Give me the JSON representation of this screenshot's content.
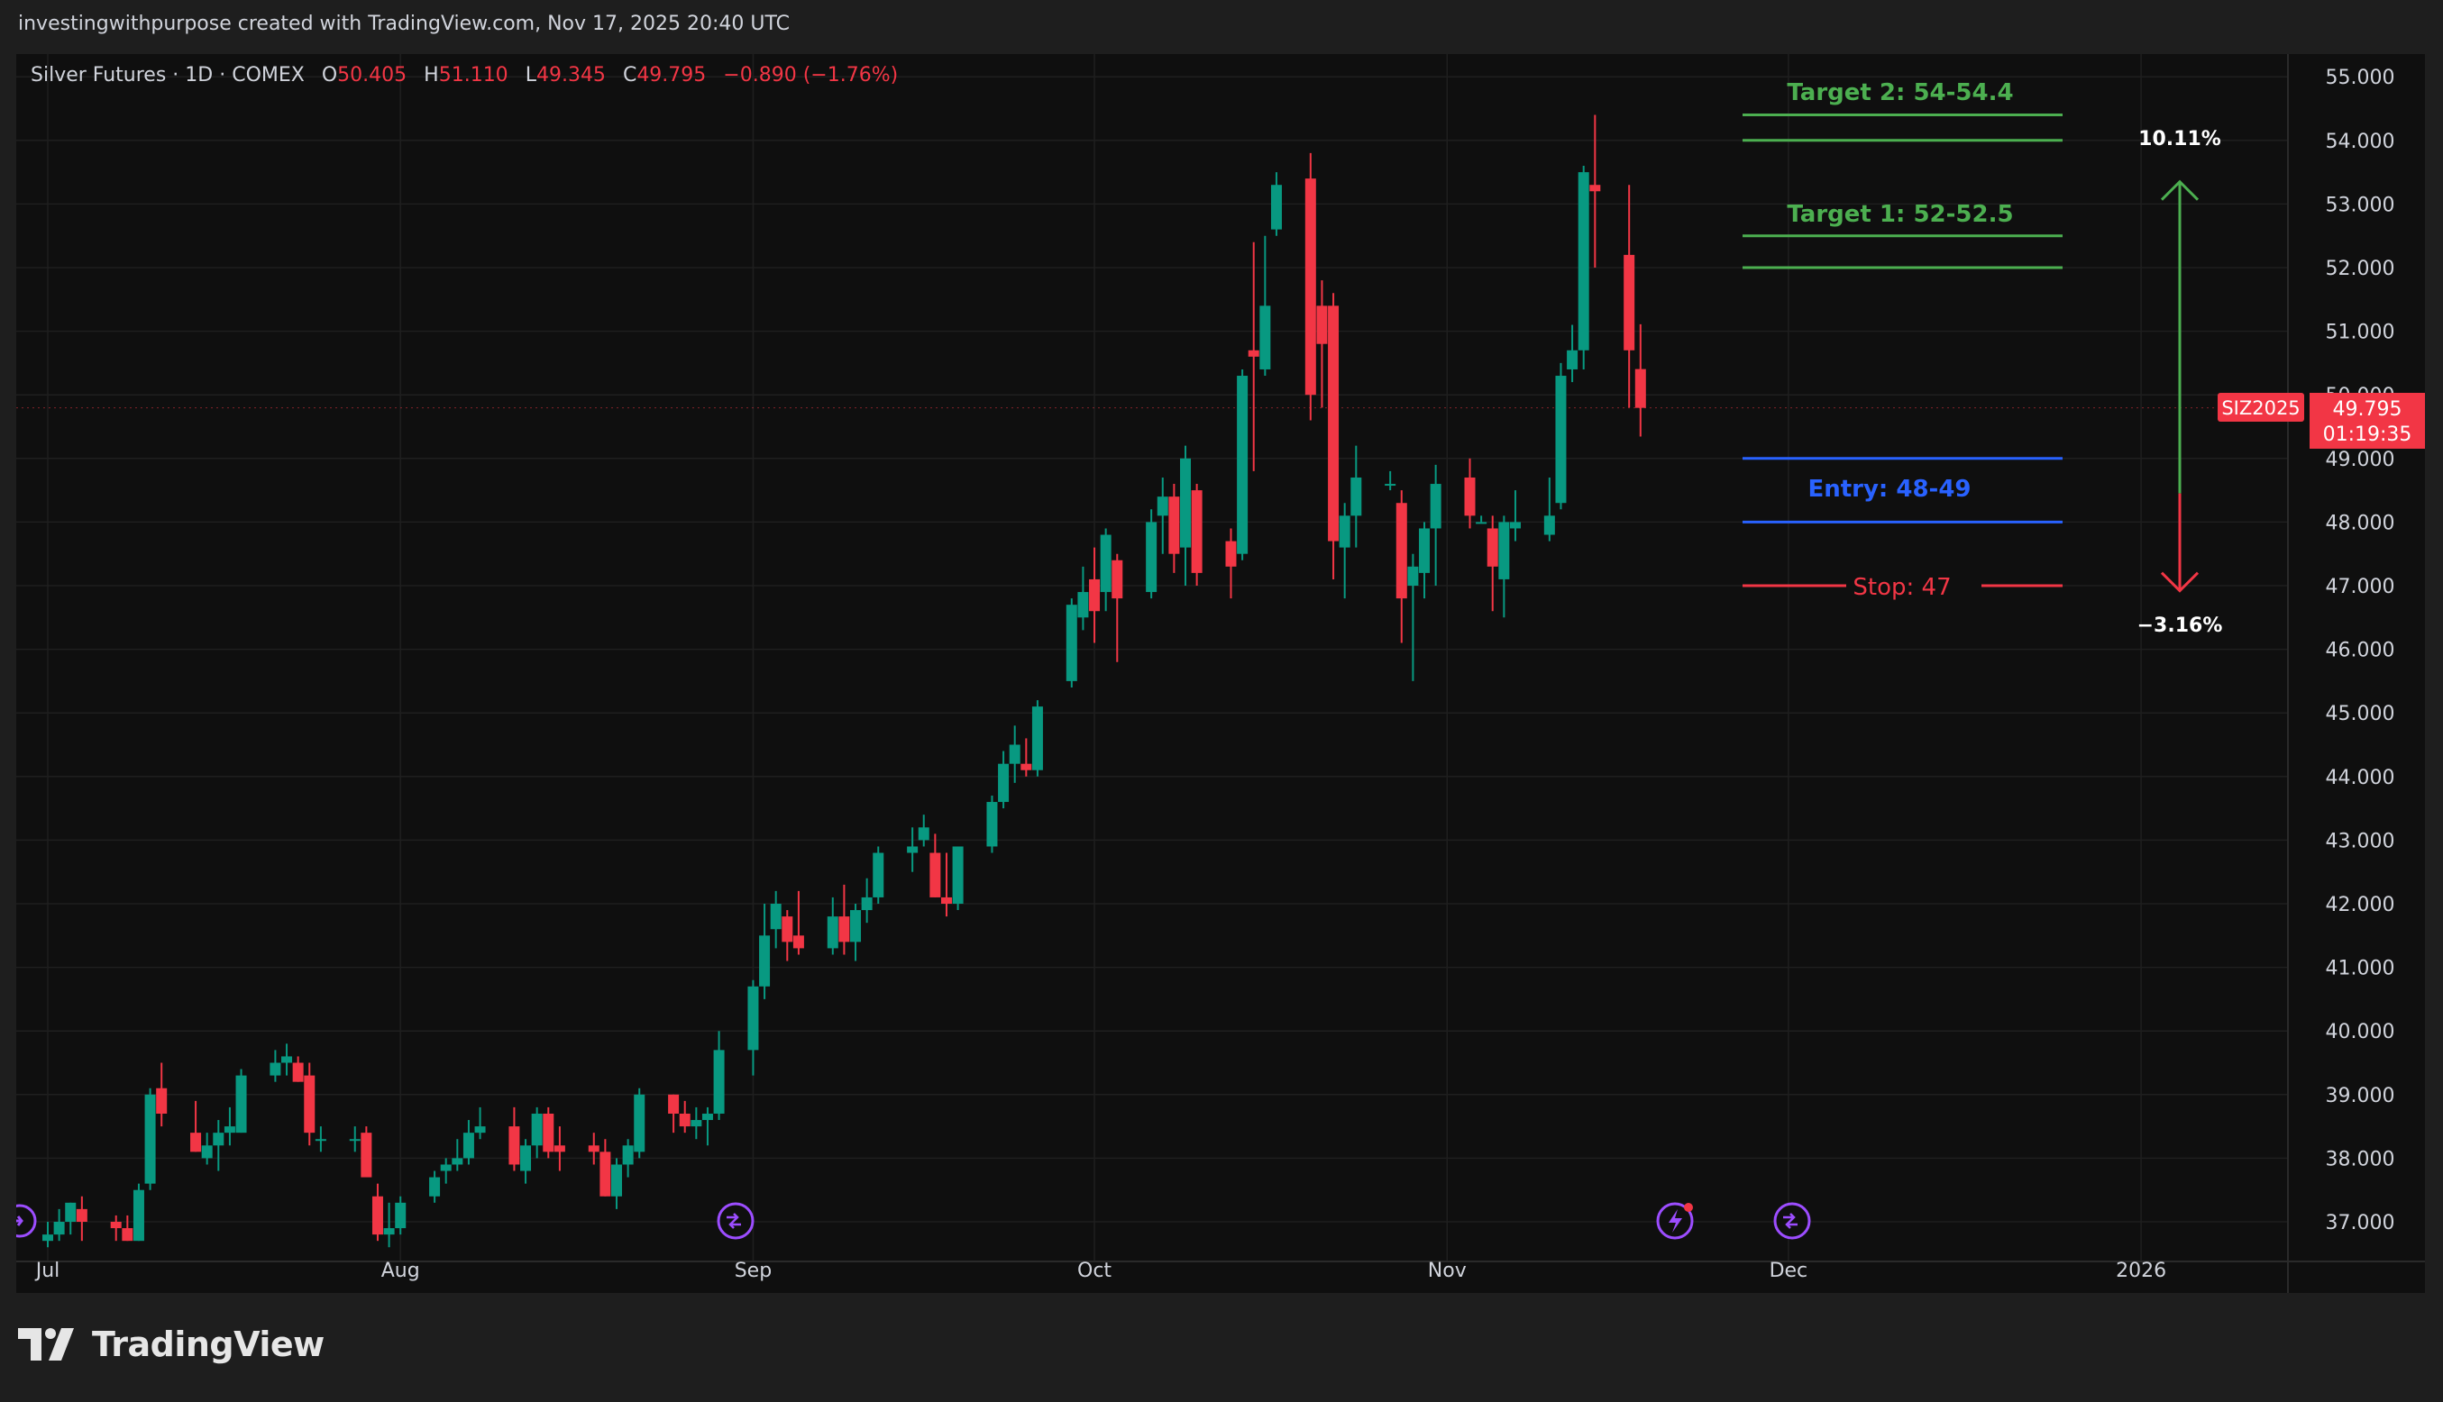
{
  "header": {
    "credit": "investingwithpurpose created with TradingView.com, Nov 17, 2025 20:40 UTC"
  },
  "legend": {
    "symbol": "Silver Futures · 1D · COMEX",
    "o_label": "O",
    "o_value": "50.405",
    "h_label": "H",
    "h_value": "51.110",
    "l_label": "L",
    "l_value": "49.345",
    "c_label": "C",
    "c_value": "49.795",
    "change": "−0.890 (−1.76%)"
  },
  "price_badge": {
    "symbol": "SIZ2025",
    "price": "49.795",
    "countdown": "01:19:35"
  },
  "annotations": {
    "target2": "Target 2: 54-54.4",
    "target1": "Target 1: 52-52.5",
    "entry": "Entry: 48-49",
    "stop": "Stop: 47",
    "upside": "10.11%",
    "downside": "−3.16%"
  },
  "footer": {
    "brand": "TradingView"
  },
  "colors": {
    "up": "#089981",
    "down": "#f23645",
    "target": "#4caf50",
    "entry": "#2962ff",
    "stop": "#f23645",
    "background": "#0f0f0f",
    "grid": "#1f1f1f",
    "text": "#d1d4dc"
  },
  "chart_data": {
    "type": "candlestick",
    "title": "Silver Futures · 1D · COMEX",
    "ylim": [
      36.6,
      55.3
    ],
    "y_ticks": [
      "37.000",
      "38.000",
      "39.000",
      "40.000",
      "41.000",
      "42.000",
      "43.000",
      "44.000",
      "45.000",
      "46.000",
      "47.000",
      "48.000",
      "49.000",
      "50.000",
      "51.000",
      "52.000",
      "53.000",
      "54.000",
      "55.000"
    ],
    "x_ticks": [
      {
        "label": "Jul",
        "date": "2025-07-01"
      },
      {
        "label": "Aug",
        "date": "2025-08-01"
      },
      {
        "label": "Sep",
        "date": "2025-09-01"
      },
      {
        "label": "Oct",
        "date": "2025-10-01"
      },
      {
        "label": "Nov",
        "date": "2025-11-01"
      },
      {
        "label": "Dec",
        "date": "2025-12-01"
      },
      {
        "label": "2026",
        "date": "2026-01-01"
      }
    ],
    "candles": [
      {
        "date": "2025-07-01",
        "o": 36.7,
        "h": 37.0,
        "l": 36.6,
        "c": 36.8
      },
      {
        "date": "2025-07-02",
        "o": 36.8,
        "h": 37.2,
        "l": 36.7,
        "c": 37.0
      },
      {
        "date": "2025-07-03",
        "o": 37.0,
        "h": 37.3,
        "l": 36.8,
        "c": 37.3
      },
      {
        "date": "2025-07-04",
        "o": 37.2,
        "h": 37.4,
        "l": 36.7,
        "c": 37.0
      },
      {
        "date": "2025-07-07",
        "o": 37.0,
        "h": 37.1,
        "l": 36.7,
        "c": 36.9
      },
      {
        "date": "2025-07-08",
        "o": 36.9,
        "h": 37.1,
        "l": 36.7,
        "c": 36.7
      },
      {
        "date": "2025-07-09",
        "o": 36.7,
        "h": 37.6,
        "l": 36.7,
        "c": 37.5
      },
      {
        "date": "2025-07-10",
        "o": 37.6,
        "h": 39.1,
        "l": 37.5,
        "c": 39.0
      },
      {
        "date": "2025-07-11",
        "o": 39.1,
        "h": 39.5,
        "l": 38.5,
        "c": 38.7
      },
      {
        "date": "2025-07-14",
        "o": 38.4,
        "h": 38.9,
        "l": 38.1,
        "c": 38.1
      },
      {
        "date": "2025-07-15",
        "o": 38.0,
        "h": 38.4,
        "l": 37.9,
        "c": 38.2
      },
      {
        "date": "2025-07-16",
        "o": 38.2,
        "h": 38.6,
        "l": 37.8,
        "c": 38.4
      },
      {
        "date": "2025-07-17",
        "o": 38.4,
        "h": 38.8,
        "l": 38.2,
        "c": 38.5
      },
      {
        "date": "2025-07-18",
        "o": 38.4,
        "h": 39.4,
        "l": 38.4,
        "c": 39.3
      },
      {
        "date": "2025-07-21",
        "o": 39.3,
        "h": 39.7,
        "l": 39.2,
        "c": 39.5
      },
      {
        "date": "2025-07-22",
        "o": 39.5,
        "h": 39.8,
        "l": 39.3,
        "c": 39.6
      },
      {
        "date": "2025-07-23",
        "o": 39.5,
        "h": 39.6,
        "l": 39.2,
        "c": 39.2
      },
      {
        "date": "2025-07-24",
        "o": 39.3,
        "h": 39.5,
        "l": 38.2,
        "c": 38.4
      },
      {
        "date": "2025-07-25",
        "o": 38.3,
        "h": 38.5,
        "l": 38.1,
        "c": 38.3
      },
      {
        "date": "2025-07-28",
        "o": 38.3,
        "h": 38.5,
        "l": 38.1,
        "c": 38.3
      },
      {
        "date": "2025-07-29",
        "o": 38.4,
        "h": 38.5,
        "l": 37.8,
        "c": 37.7
      },
      {
        "date": "2025-07-30",
        "o": 37.4,
        "h": 37.6,
        "l": 36.7,
        "c": 36.8
      },
      {
        "date": "2025-07-31",
        "o": 36.8,
        "h": 37.3,
        "l": 36.6,
        "c": 36.9
      },
      {
        "date": "2025-08-01",
        "o": 36.9,
        "h": 37.4,
        "l": 36.8,
        "c": 37.3
      },
      {
        "date": "2025-08-04",
        "o": 37.4,
        "h": 37.8,
        "l": 37.3,
        "c": 37.7
      },
      {
        "date": "2025-08-05",
        "o": 37.8,
        "h": 38.0,
        "l": 37.6,
        "c": 37.9
      },
      {
        "date": "2025-08-06",
        "o": 37.9,
        "h": 38.3,
        "l": 37.8,
        "c": 38.0
      },
      {
        "date": "2025-08-07",
        "o": 38.0,
        "h": 38.6,
        "l": 37.9,
        "c": 38.4
      },
      {
        "date": "2025-08-08",
        "o": 38.4,
        "h": 38.8,
        "l": 38.3,
        "c": 38.5
      },
      {
        "date": "2025-08-11",
        "o": 38.5,
        "h": 38.8,
        "l": 37.8,
        "c": 37.9
      },
      {
        "date": "2025-08-12",
        "o": 37.8,
        "h": 38.3,
        "l": 37.6,
        "c": 38.2
      },
      {
        "date": "2025-08-13",
        "o": 38.2,
        "h": 38.8,
        "l": 38.0,
        "c": 38.7
      },
      {
        "date": "2025-08-14",
        "o": 38.7,
        "h": 38.8,
        "l": 38.0,
        "c": 38.1
      },
      {
        "date": "2025-08-15",
        "o": 38.2,
        "h": 38.5,
        "l": 37.8,
        "c": 38.1
      },
      {
        "date": "2025-08-18",
        "o": 38.2,
        "h": 38.4,
        "l": 37.9,
        "c": 38.1
      },
      {
        "date": "2025-08-19",
        "o": 38.1,
        "h": 38.3,
        "l": 37.4,
        "c": 37.4
      },
      {
        "date": "2025-08-20",
        "o": 37.4,
        "h": 38.0,
        "l": 37.2,
        "c": 37.9
      },
      {
        "date": "2025-08-21",
        "o": 37.9,
        "h": 38.3,
        "l": 37.7,
        "c": 38.2
      },
      {
        "date": "2025-08-22",
        "o": 38.1,
        "h": 39.1,
        "l": 38.0,
        "c": 39.0
      },
      {
        "date": "2025-08-25",
        "o": 39.0,
        "h": 39.0,
        "l": 38.4,
        "c": 38.7
      },
      {
        "date": "2025-08-26",
        "o": 38.7,
        "h": 38.9,
        "l": 38.4,
        "c": 38.5
      },
      {
        "date": "2025-08-27",
        "o": 38.5,
        "h": 38.8,
        "l": 38.3,
        "c": 38.6
      },
      {
        "date": "2025-08-28",
        "o": 38.6,
        "h": 38.8,
        "l": 38.2,
        "c": 38.7
      },
      {
        "date": "2025-08-29",
        "o": 38.7,
        "h": 40.0,
        "l": 38.6,
        "c": 39.7
      },
      {
        "date": "2025-09-01",
        "o": 39.7,
        "h": 40.8,
        "l": 39.3,
        "c": 40.7
      },
      {
        "date": "2025-09-02",
        "o": 40.7,
        "h": 42.0,
        "l": 40.5,
        "c": 41.5
      },
      {
        "date": "2025-09-03",
        "o": 41.6,
        "h": 42.2,
        "l": 41.3,
        "c": 42.0
      },
      {
        "date": "2025-09-04",
        "o": 41.8,
        "h": 41.9,
        "l": 41.1,
        "c": 41.4
      },
      {
        "date": "2025-09-05",
        "o": 41.5,
        "h": 42.2,
        "l": 41.2,
        "c": 41.3
      },
      {
        "date": "2025-09-08",
        "o": 41.3,
        "h": 42.1,
        "l": 41.2,
        "c": 41.8
      },
      {
        "date": "2025-09-09",
        "o": 41.8,
        "h": 42.3,
        "l": 41.2,
        "c": 41.4
      },
      {
        "date": "2025-09-10",
        "o": 41.4,
        "h": 42.0,
        "l": 41.1,
        "c": 41.9
      },
      {
        "date": "2025-09-11",
        "o": 41.9,
        "h": 42.4,
        "l": 41.7,
        "c": 42.1
      },
      {
        "date": "2025-09-12",
        "o": 42.1,
        "h": 42.9,
        "l": 42.0,
        "c": 42.8
      },
      {
        "date": "2025-09-15",
        "o": 42.8,
        "h": 43.2,
        "l": 42.5,
        "c": 42.9
      },
      {
        "date": "2025-09-16",
        "o": 43.0,
        "h": 43.4,
        "l": 42.9,
        "c": 43.2
      },
      {
        "date": "2025-09-17",
        "o": 42.8,
        "h": 43.1,
        "l": 42.1,
        "c": 42.1
      },
      {
        "date": "2025-09-18",
        "o": 42.1,
        "h": 42.8,
        "l": 41.8,
        "c": 42.0
      },
      {
        "date": "2025-09-19",
        "o": 42.0,
        "h": 42.9,
        "l": 41.9,
        "c": 42.9
      },
      {
        "date": "2025-09-22",
        "o": 42.9,
        "h": 43.7,
        "l": 42.8,
        "c": 43.6
      },
      {
        "date": "2025-09-23",
        "o": 43.6,
        "h": 44.4,
        "l": 43.5,
        "c": 44.2
      },
      {
        "date": "2025-09-24",
        "o": 44.2,
        "h": 44.8,
        "l": 43.9,
        "c": 44.5
      },
      {
        "date": "2025-09-25",
        "o": 44.2,
        "h": 44.6,
        "l": 44.0,
        "c": 44.1
      },
      {
        "date": "2025-09-26",
        "o": 44.1,
        "h": 45.2,
        "l": 44.0,
        "c": 45.1
      },
      {
        "date": "2025-09-29",
        "o": 45.5,
        "h": 46.8,
        "l": 45.4,
        "c": 46.7
      },
      {
        "date": "2025-09-30",
        "o": 46.5,
        "h": 47.3,
        "l": 46.3,
        "c": 46.9
      },
      {
        "date": "2025-10-01",
        "o": 47.1,
        "h": 47.6,
        "l": 46.1,
        "c": 46.6
      },
      {
        "date": "2025-10-02",
        "o": 46.9,
        "h": 47.9,
        "l": 46.6,
        "c": 47.8
      },
      {
        "date": "2025-10-03",
        "o": 47.4,
        "h": 47.5,
        "l": 45.8,
        "c": 46.8
      },
      {
        "date": "2025-10-06",
        "o": 46.9,
        "h": 48.2,
        "l": 46.8,
        "c": 48.0
      },
      {
        "date": "2025-10-07",
        "o": 48.1,
        "h": 48.7,
        "l": 47.5,
        "c": 48.4
      },
      {
        "date": "2025-10-08",
        "o": 48.4,
        "h": 48.6,
        "l": 47.2,
        "c": 47.5
      },
      {
        "date": "2025-10-09",
        "o": 47.6,
        "h": 49.2,
        "l": 47.0,
        "c": 49.0
      },
      {
        "date": "2025-10-10",
        "o": 48.5,
        "h": 48.6,
        "l": 47.0,
        "c": 47.2
      },
      {
        "date": "2025-10-13",
        "o": 47.7,
        "h": 47.9,
        "l": 46.8,
        "c": 47.3
      },
      {
        "date": "2025-10-14",
        "o": 47.5,
        "h": 50.4,
        "l": 47.4,
        "c": 50.3
      },
      {
        "date": "2025-10-15",
        "o": 50.7,
        "h": 52.4,
        "l": 48.8,
        "c": 50.6
      },
      {
        "date": "2025-10-16",
        "o": 50.4,
        "h": 52.5,
        "l": 50.3,
        "c": 51.4
      },
      {
        "date": "2025-10-17",
        "o": 52.6,
        "h": 53.5,
        "l": 52.5,
        "c": 53.3
      },
      {
        "date": "2025-10-20",
        "o": 53.4,
        "h": 53.8,
        "l": 49.6,
        "c": 50.0
      },
      {
        "date": "2025-10-21",
        "o": 51.4,
        "h": 51.8,
        "l": 49.8,
        "c": 50.8
      },
      {
        "date": "2025-10-22",
        "o": 51.4,
        "h": 51.6,
        "l": 47.1,
        "c": 47.7
      },
      {
        "date": "2025-10-23",
        "o": 47.6,
        "h": 48.3,
        "l": 46.8,
        "c": 48.1
      },
      {
        "date": "2025-10-24",
        "o": 48.1,
        "h": 49.2,
        "l": 47.6,
        "c": 48.7
      },
      {
        "date": "2025-10-27",
        "o": 48.6,
        "h": 48.8,
        "l": 48.5,
        "c": 48.6
      },
      {
        "date": "2025-10-28",
        "o": 48.3,
        "h": 48.5,
        "l": 46.1,
        "c": 46.8
      },
      {
        "date": "2025-10-29",
        "o": 47.0,
        "h": 47.5,
        "l": 45.5,
        "c": 47.3
      },
      {
        "date": "2025-10-30",
        "o": 47.2,
        "h": 48.0,
        "l": 46.8,
        "c": 47.9
      },
      {
        "date": "2025-10-31",
        "o": 47.9,
        "h": 48.9,
        "l": 47.0,
        "c": 48.6
      },
      {
        "date": "2025-11-03",
        "o": 48.7,
        "h": 49.0,
        "l": 47.9,
        "c": 48.1
      },
      {
        "date": "2025-11-04",
        "o": 48.0,
        "h": 48.1,
        "l": 48.0,
        "c": 48.0
      },
      {
        "date": "2025-11-05",
        "o": 47.9,
        "h": 48.1,
        "l": 46.6,
        "c": 47.3
      },
      {
        "date": "2025-11-06",
        "o": 47.1,
        "h": 48.1,
        "l": 46.5,
        "c": 48.0
      },
      {
        "date": "2025-11-07",
        "o": 47.9,
        "h": 48.5,
        "l": 47.7,
        "c": 48.0
      },
      {
        "date": "2025-11-10",
        "o": 47.8,
        "h": 48.7,
        "l": 47.7,
        "c": 48.1
      },
      {
        "date": "2025-11-11",
        "o": 48.3,
        "h": 50.5,
        "l": 48.2,
        "c": 50.3
      },
      {
        "date": "2025-11-12",
        "o": 50.4,
        "h": 51.1,
        "l": 50.2,
        "c": 50.7
      },
      {
        "date": "2025-11-13",
        "o": 50.7,
        "h": 53.6,
        "l": 50.4,
        "c": 53.5
      },
      {
        "date": "2025-11-14",
        "o": 53.3,
        "h": 54.4,
        "l": 52.0,
        "c": 53.2
      },
      {
        "date": "2025-11-17",
        "o": 52.2,
        "h": 53.3,
        "l": 49.8,
        "c": 50.7
      },
      {
        "date": "2025-11-18",
        "o": 50.405,
        "h": 51.11,
        "l": 49.345,
        "c": 49.795
      }
    ],
    "levels": [
      {
        "name": "Target 2: 54-54.4",
        "low": 54.0,
        "high": 54.4
      },
      {
        "name": "Target 1: 52-52.5",
        "low": 52.0,
        "high": 52.5
      },
      {
        "name": "Entry: 48-49",
        "low": 48.0,
        "high": 49.0
      },
      {
        "name": "Stop: 47",
        "value": 47.0
      }
    ],
    "projection": {
      "from": 48.45,
      "up_to": 53.35,
      "down_to": 46.92,
      "up_pct": "10.11%",
      "down_pct": "−3.16%"
    },
    "last_price": 49.795,
    "grid": true
  }
}
